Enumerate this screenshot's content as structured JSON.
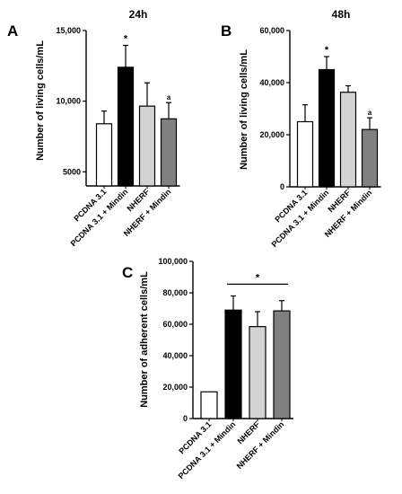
{
  "chart_data": [
    {
      "type": "bar",
      "panel": "A",
      "title": "24h",
      "ylabel": "Number of living cells/mL",
      "categories": [
        "PCDNA 3.1",
        "PCDNA 3.1 + Mindin",
        "NHERF",
        "NHERF + Mindin"
      ],
      "values": [
        8400,
        12400,
        9650,
        8750
      ],
      "errors": [
        900,
        1550,
        1650,
        1150
      ],
      "colors": [
        "#ffffff",
        "#000000",
        "#d3d3d3",
        "#808080"
      ],
      "ylim": [
        4000,
        15000
      ],
      "yticks": [
        5000,
        10000,
        15000
      ],
      "ytick_labels": [
        "5000",
        "10,000",
        "15,000"
      ],
      "annotations": [
        "",
        "*",
        "",
        "a"
      ],
      "grid": false
    },
    {
      "type": "bar",
      "panel": "B",
      "title": "48h",
      "ylabel": "Number of living cells/mL",
      "categories": [
        "PCDNA 3.1",
        "PCDNA 3.1 + Mindin",
        "NHERF",
        "NHERF + Mindin"
      ],
      "values": [
        25000,
        45000,
        36300,
        22000
      ],
      "errors": [
        6500,
        5000,
        2500,
        4500
      ],
      "colors": [
        "#ffffff",
        "#000000",
        "#d3d3d3",
        "#808080"
      ],
      "ylim": [
        0,
        60000
      ],
      "yticks": [
        0,
        20000,
        40000,
        60000
      ],
      "ytick_labels": [
        "0",
        "20,000",
        "40,000",
        "60,000"
      ],
      "annotations": [
        "",
        "*",
        "",
        "a"
      ],
      "grid": false
    },
    {
      "type": "bar",
      "panel": "C",
      "title": "",
      "ylabel": "Number of adherent cells/mL",
      "categories": [
        "PCDNA 3.1",
        "PCDNA 3.1 + Mindin",
        "NHERF",
        "NHERF + Mindin"
      ],
      "values": [
        17000,
        69000,
        58500,
        68500
      ],
      "errors": [
        0,
        9000,
        9500,
        6500
      ],
      "colors": [
        "#ffffff",
        "#000000",
        "#d3d3d3",
        "#808080"
      ],
      "ylim": [
        0,
        100000
      ],
      "yticks": [
        0,
        20000,
        40000,
        60000,
        80000,
        100000
      ],
      "ytick_labels": [
        "0",
        "20,000",
        "40,000",
        "60,000",
        "80,000",
        "100,000"
      ],
      "annotations": [
        "",
        "",
        "",
        ""
      ],
      "bracket_label": "*",
      "grid": false
    }
  ]
}
